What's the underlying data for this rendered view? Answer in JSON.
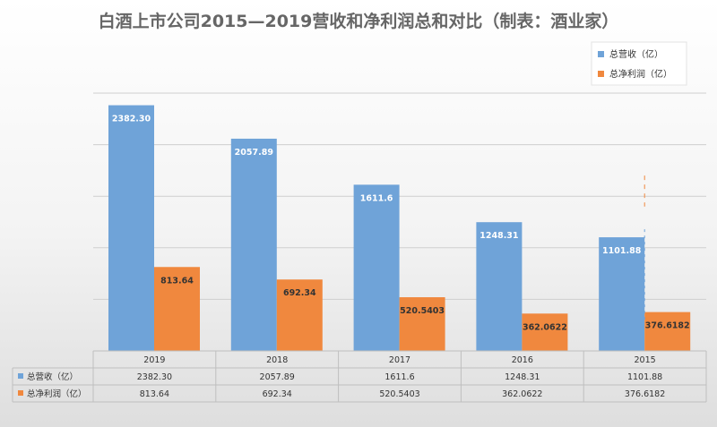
{
  "chart_data": {
    "type": "bar",
    "title": "白酒上市公司2015—2019营收和净利润总和对比（制表：酒业家）",
    "categories": [
      "2019",
      "2018",
      "2017",
      "2016",
      "2015"
    ],
    "series": [
      {
        "name": "总营收（亿）",
        "color": "#6fa3d8",
        "values": [
          2382.3,
          2057.89,
          1611.6,
          1248.31,
          1101.88
        ],
        "labels": [
          "2382.30",
          "2057.89",
          "1611.6",
          "1248.31",
          "1101.88"
        ]
      },
      {
        "name": "总净利润（亿）",
        "color": "#f0883e",
        "values": [
          813.64,
          692.34,
          520.5403,
          362.0622,
          376.6182
        ],
        "labels": [
          "813.64",
          "692.34",
          "520.5403",
          "362.0622",
          "376.6182"
        ]
      }
    ],
    "ylim": [
      0,
      2500
    ],
    "grid": true,
    "legend": "top-right",
    "data_table": true
  }
}
